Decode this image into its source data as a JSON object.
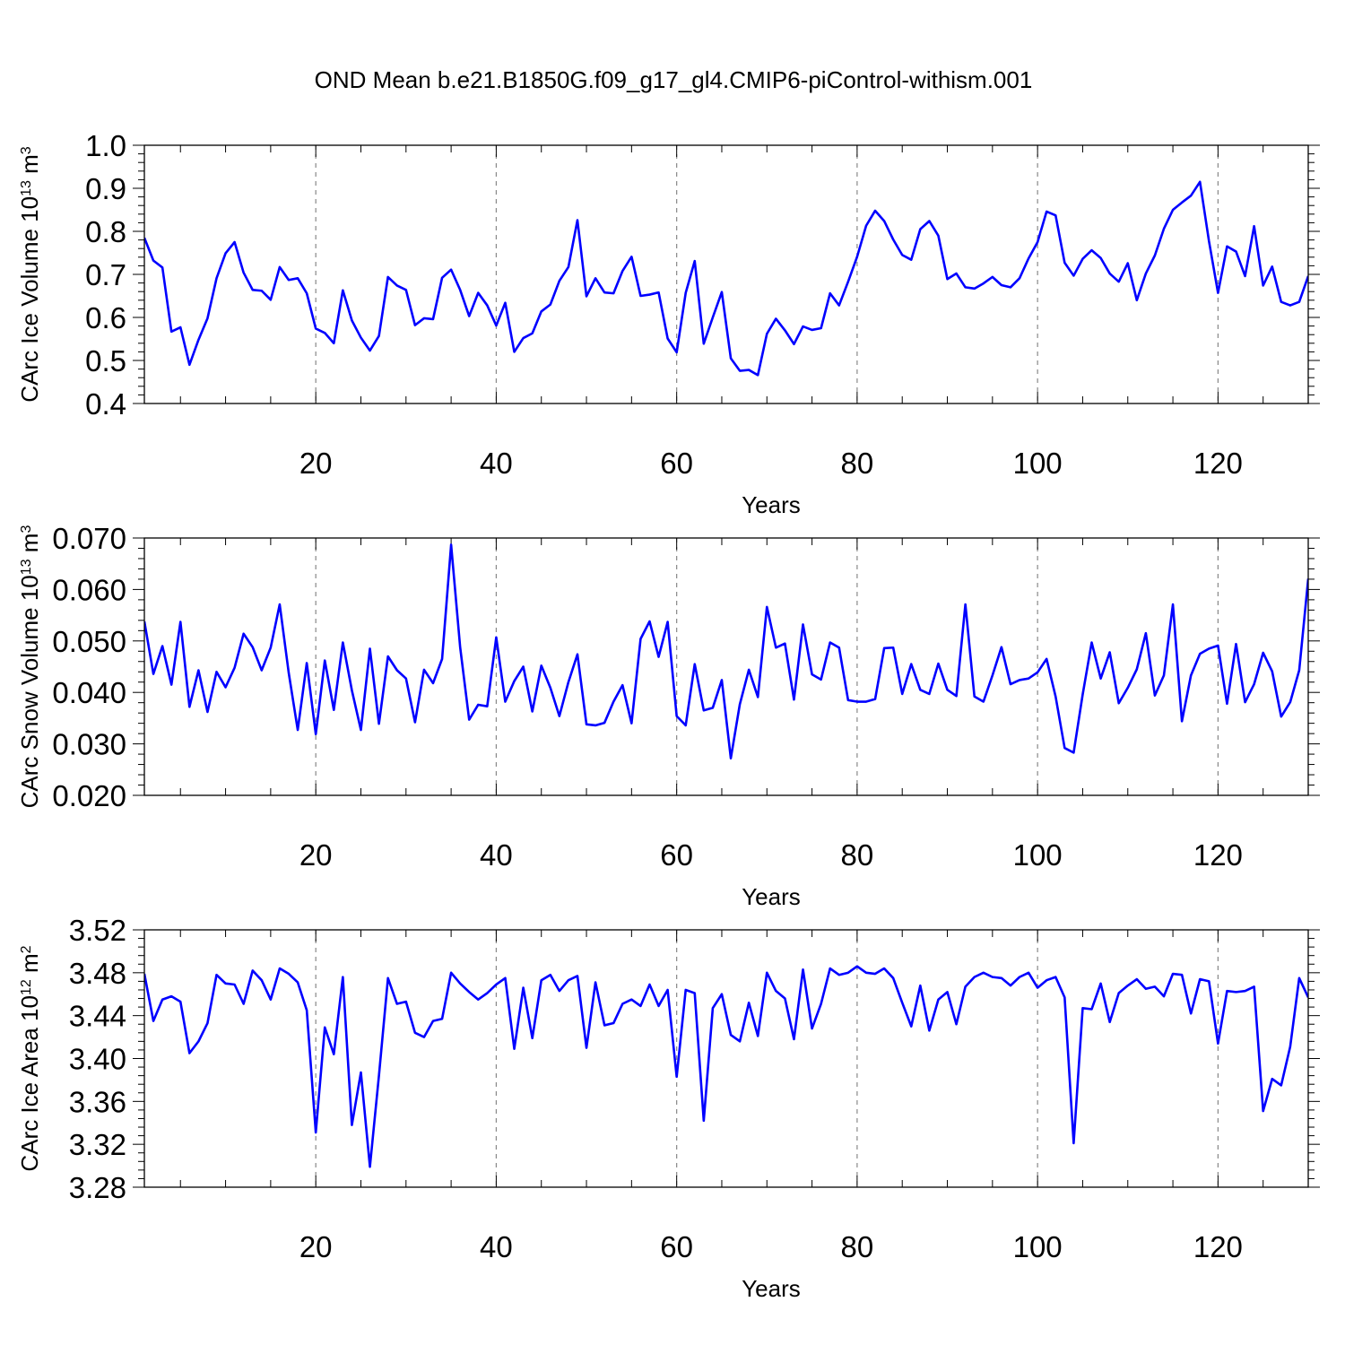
{
  "figure_title": "OND Mean b.e21.B1850G.f09_g17_gl4.CMIP6-piControl-withism.001",
  "colors": {
    "series": "#0000ff",
    "axis": "#000000",
    "grid": "#888888",
    "background": "#ffffff"
  },
  "chart_data": [
    {
      "type": "line",
      "xlabel": "Years",
      "ylabel": "CArc Ice Volume 10¹³ m³",
      "ylabel_parts": {
        "base": "CArc Ice Volume 10",
        "exp1": "13",
        "mid": " m",
        "exp2": "3"
      },
      "xlim": [
        1,
        130
      ],
      "ylim": [
        0.4,
        1.0
      ],
      "xticks": [
        20,
        40,
        60,
        80,
        100,
        120
      ],
      "xtick_labels": [
        "20",
        "40",
        "60",
        "80",
        "100",
        "120"
      ],
      "yticks": [
        0.4,
        0.5,
        0.6,
        0.7,
        0.8,
        0.9,
        1.0
      ],
      "ytick_labels": [
        "0.4",
        "0.5",
        "0.6",
        "0.7",
        "0.8",
        "0.9",
        "1.0"
      ],
      "x_gridlines": [
        20,
        40,
        60,
        80,
        100,
        120
      ],
      "series": [
        {
          "x_start": 1,
          "values": [
            0.785,
            0.732,
            0.716,
            0.567,
            0.577,
            0.49,
            0.548,
            0.598,
            0.691,
            0.749,
            0.775,
            0.704,
            0.664,
            0.662,
            0.641,
            0.717,
            0.687,
            0.691,
            0.656,
            0.574,
            0.564,
            0.54,
            0.663,
            0.593,
            0.553,
            0.523,
            0.557,
            0.694,
            0.674,
            0.664,
            0.582,
            0.598,
            0.596,
            0.692,
            0.711,
            0.664,
            0.603,
            0.657,
            0.628,
            0.581,
            0.634,
            0.52,
            0.552,
            0.563,
            0.614,
            0.63,
            0.685,
            0.717,
            0.826,
            0.649,
            0.691,
            0.658,
            0.656,
            0.708,
            0.741,
            0.65,
            0.653,
            0.658,
            0.551,
            0.519,
            0.657,
            0.731,
            0.539,
            0.6,
            0.659,
            0.505,
            0.476,
            0.478,
            0.466,
            0.562,
            0.597,
            0.57,
            0.538,
            0.579,
            0.571,
            0.575,
            0.656,
            0.628,
            0.683,
            0.741,
            0.813,
            0.848,
            0.824,
            0.781,
            0.745,
            0.734,
            0.805,
            0.824,
            0.79,
            0.689,
            0.702,
            0.67,
            0.667,
            0.679,
            0.694,
            0.675,
            0.67,
            0.691,
            0.737,
            0.775,
            0.846,
            0.837,
            0.727,
            0.697,
            0.736,
            0.756,
            0.738,
            0.702,
            0.683,
            0.726,
            0.64,
            0.702,
            0.744,
            0.806,
            0.85,
            0.867,
            0.883,
            0.915,
            0.777,
            0.657,
            0.765,
            0.753,
            0.696,
            0.812,
            0.674,
            0.718,
            0.636,
            0.628,
            0.636,
            0.696
          ]
        }
      ]
    },
    {
      "type": "line",
      "xlabel": "Years",
      "ylabel": "CArc Snow Volume 10¹³ m³",
      "ylabel_parts": {
        "base": "CArc Snow Volume 10",
        "exp1": "13",
        "mid": " m",
        "exp2": "3"
      },
      "xlim": [
        1,
        130
      ],
      "ylim": [
        0.02,
        0.07
      ],
      "xticks": [
        20,
        40,
        60,
        80,
        100,
        120
      ],
      "xtick_labels": [
        "20",
        "40",
        "60",
        "80",
        "100",
        "120"
      ],
      "yticks": [
        0.02,
        0.03,
        0.04,
        0.05,
        0.06,
        0.07
      ],
      "ytick_labels": [
        "0.020",
        "0.030",
        "0.040",
        "0.050",
        "0.060",
        "0.070"
      ],
      "x_gridlines": [
        20,
        40,
        60,
        80,
        100,
        120
      ],
      "series": [
        {
          "x_start": 1,
          "values": [
            0.0538,
            0.0436,
            0.049,
            0.0415,
            0.0537,
            0.0372,
            0.0443,
            0.0362,
            0.044,
            0.041,
            0.0448,
            0.0514,
            0.0488,
            0.0443,
            0.0487,
            0.0571,
            0.0438,
            0.0327,
            0.0457,
            0.0319,
            0.0462,
            0.0366,
            0.0497,
            0.0404,
            0.0327,
            0.0485,
            0.0339,
            0.047,
            0.0443,
            0.0427,
            0.0342,
            0.0444,
            0.0418,
            0.0465,
            0.0687,
            0.0488,
            0.0347,
            0.0376,
            0.0373,
            0.0507,
            0.0382,
            0.0422,
            0.045,
            0.0363,
            0.0452,
            0.0409,
            0.0354,
            0.042,
            0.0474,
            0.0338,
            0.0336,
            0.0341,
            0.0382,
            0.0414,
            0.034,
            0.0504,
            0.0538,
            0.0469,
            0.0537,
            0.0354,
            0.0336,
            0.0455,
            0.0365,
            0.037,
            0.0424,
            0.0272,
            0.0377,
            0.0444,
            0.0391,
            0.0566,
            0.0487,
            0.0495,
            0.0386,
            0.0532,
            0.0435,
            0.0425,
            0.0497,
            0.0487,
            0.0385,
            0.0382,
            0.0382,
            0.0387,
            0.0486,
            0.0487,
            0.0397,
            0.0455,
            0.0405,
            0.0397,
            0.0456,
            0.0405,
            0.0393,
            0.0571,
            0.0392,
            0.0382,
            0.0433,
            0.0488,
            0.0416,
            0.0424,
            0.0427,
            0.0439,
            0.0465,
            0.0392,
            0.0292,
            0.0283,
            0.0396,
            0.0497,
            0.0427,
            0.0478,
            0.0379,
            0.0409,
            0.0445,
            0.0515,
            0.0394,
            0.0433,
            0.0571,
            0.0344,
            0.0433,
            0.0475,
            0.0485,
            0.0491,
            0.0378,
            0.0494,
            0.0381,
            0.0416,
            0.0477,
            0.0441,
            0.0353,
            0.0381,
            0.0443,
            0.0621
          ]
        }
      ]
    },
    {
      "type": "line",
      "xlabel": "Years",
      "ylabel": "CArc Ice Area 10¹² m²",
      "ylabel_parts": {
        "base": "CArc Ice Area 10",
        "exp1": "12",
        "mid": " m",
        "exp2": "2"
      },
      "xlim": [
        1,
        130
      ],
      "ylim": [
        3.28,
        3.52
      ],
      "xticks": [
        20,
        40,
        60,
        80,
        100,
        120
      ],
      "xtick_labels": [
        "20",
        "40",
        "60",
        "80",
        "100",
        "120"
      ],
      "yticks": [
        3.28,
        3.32,
        3.36,
        3.4,
        3.44,
        3.48,
        3.52
      ],
      "ytick_labels": [
        "3.28",
        "3.32",
        "3.36",
        "3.40",
        "3.44",
        "3.48",
        "3.52"
      ],
      "x_gridlines": [
        20,
        40,
        60,
        80,
        100,
        120
      ],
      "series": [
        {
          "x_start": 1,
          "values": [
            3.479,
            3.435,
            3.455,
            3.458,
            3.453,
            3.405,
            3.416,
            3.433,
            3.478,
            3.47,
            3.469,
            3.451,
            3.482,
            3.473,
            3.455,
            3.484,
            3.479,
            3.471,
            3.445,
            3.331,
            3.429,
            3.404,
            3.476,
            3.338,
            3.387,
            3.299,
            3.384,
            3.475,
            3.451,
            3.453,
            3.424,
            3.42,
            3.435,
            3.437,
            3.48,
            3.47,
            3.462,
            3.455,
            3.461,
            3.469,
            3.475,
            3.409,
            3.466,
            3.419,
            3.473,
            3.478,
            3.463,
            3.473,
            3.477,
            3.41,
            3.471,
            3.431,
            3.433,
            3.451,
            3.455,
            3.449,
            3.469,
            3.449,
            3.464,
            3.383,
            3.464,
            3.461,
            3.342,
            3.447,
            3.46,
            3.422,
            3.416,
            3.452,
            3.421,
            3.48,
            3.463,
            3.456,
            3.418,
            3.483,
            3.428,
            3.451,
            3.484,
            3.478,
            3.48,
            3.486,
            3.48,
            3.479,
            3.484,
            3.475,
            3.452,
            3.43,
            3.468,
            3.426,
            3.455,
            3.462,
            3.432,
            3.467,
            3.476,
            3.48,
            3.476,
            3.475,
            3.468,
            3.476,
            3.48,
            3.466,
            3.473,
            3.476,
            3.457,
            3.321,
            3.447,
            3.446,
            3.47,
            3.434,
            3.461,
            3.468,
            3.474,
            3.465,
            3.467,
            3.458,
            3.479,
            3.478,
            3.442,
            3.474,
            3.472,
            3.414,
            3.463,
            3.462,
            3.463,
            3.467,
            3.351,
            3.381,
            3.375,
            3.411,
            3.475,
            3.457
          ]
        }
      ]
    }
  ]
}
